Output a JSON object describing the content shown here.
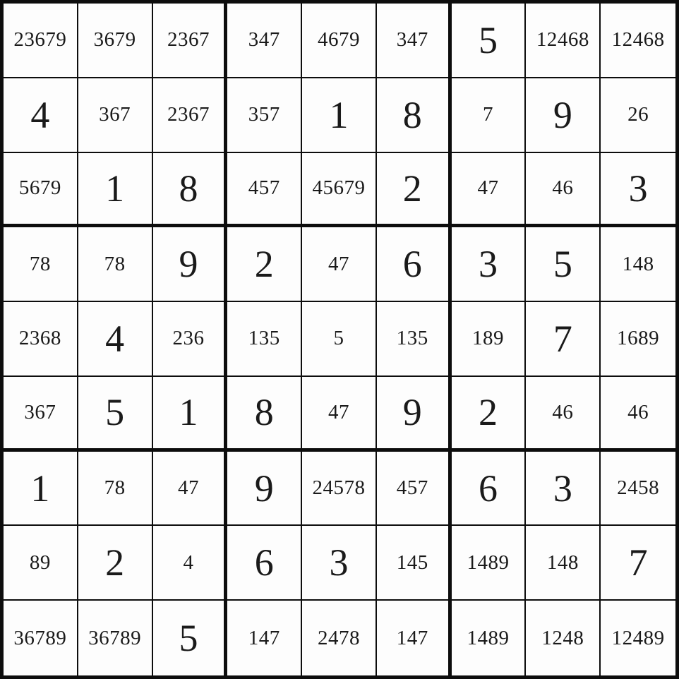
{
  "app": {
    "description": "Sudoku board with solved digits and pencil-mark candidates"
  },
  "colors": {
    "grid_line": "#0d0d0d",
    "digit_text": "#1a1a1a",
    "cell_background": "#fdfdfd"
  },
  "grid": {
    "rows": 9,
    "cols": 9,
    "cells": [
      {
        "row": 1,
        "col": 1,
        "kind": "pencil",
        "value": "23679"
      },
      {
        "row": 1,
        "col": 2,
        "kind": "pencil",
        "value": "3679"
      },
      {
        "row": 1,
        "col": 3,
        "kind": "pencil",
        "value": "2367"
      },
      {
        "row": 1,
        "col": 4,
        "kind": "pencil",
        "value": "347"
      },
      {
        "row": 1,
        "col": 5,
        "kind": "pencil",
        "value": "4679"
      },
      {
        "row": 1,
        "col": 6,
        "kind": "pencil",
        "value": "347"
      },
      {
        "row": 1,
        "col": 7,
        "kind": "solved",
        "value": "5"
      },
      {
        "row": 1,
        "col": 8,
        "kind": "pencil",
        "value": "12468"
      },
      {
        "row": 1,
        "col": 9,
        "kind": "pencil",
        "value": "12468"
      },
      {
        "row": 2,
        "col": 1,
        "kind": "solved",
        "value": "4"
      },
      {
        "row": 2,
        "col": 2,
        "kind": "pencil",
        "value": "367"
      },
      {
        "row": 2,
        "col": 3,
        "kind": "pencil",
        "value": "2367"
      },
      {
        "row": 2,
        "col": 4,
        "kind": "pencil",
        "value": "357"
      },
      {
        "row": 2,
        "col": 5,
        "kind": "solved",
        "value": "1"
      },
      {
        "row": 2,
        "col": 6,
        "kind": "solved",
        "value": "8"
      },
      {
        "row": 2,
        "col": 7,
        "kind": "pencil",
        "value": "7"
      },
      {
        "row": 2,
        "col": 8,
        "kind": "solved",
        "value": "9"
      },
      {
        "row": 2,
        "col": 9,
        "kind": "pencil",
        "value": "26"
      },
      {
        "row": 3,
        "col": 1,
        "kind": "pencil",
        "value": "5679"
      },
      {
        "row": 3,
        "col": 2,
        "kind": "solved",
        "value": "1"
      },
      {
        "row": 3,
        "col": 3,
        "kind": "solved",
        "value": "8"
      },
      {
        "row": 3,
        "col": 4,
        "kind": "pencil",
        "value": "457"
      },
      {
        "row": 3,
        "col": 5,
        "kind": "pencil",
        "value": "45679"
      },
      {
        "row": 3,
        "col": 6,
        "kind": "solved",
        "value": "2"
      },
      {
        "row": 3,
        "col": 7,
        "kind": "pencil",
        "value": "47"
      },
      {
        "row": 3,
        "col": 8,
        "kind": "pencil",
        "value": "46"
      },
      {
        "row": 3,
        "col": 9,
        "kind": "solved",
        "value": "3"
      },
      {
        "row": 4,
        "col": 1,
        "kind": "pencil",
        "value": "78"
      },
      {
        "row": 4,
        "col": 2,
        "kind": "pencil",
        "value": "78"
      },
      {
        "row": 4,
        "col": 3,
        "kind": "solved",
        "value": "9"
      },
      {
        "row": 4,
        "col": 4,
        "kind": "solved",
        "value": "2"
      },
      {
        "row": 4,
        "col": 5,
        "kind": "pencil",
        "value": "47"
      },
      {
        "row": 4,
        "col": 6,
        "kind": "solved",
        "value": "6"
      },
      {
        "row": 4,
        "col": 7,
        "kind": "solved",
        "value": "3"
      },
      {
        "row": 4,
        "col": 8,
        "kind": "solved",
        "value": "5"
      },
      {
        "row": 4,
        "col": 9,
        "kind": "pencil",
        "value": "148"
      },
      {
        "row": 5,
        "col": 1,
        "kind": "pencil",
        "value": "2368"
      },
      {
        "row": 5,
        "col": 2,
        "kind": "solved",
        "value": "4"
      },
      {
        "row": 5,
        "col": 3,
        "kind": "pencil",
        "value": "236"
      },
      {
        "row": 5,
        "col": 4,
        "kind": "pencil",
        "value": "135"
      },
      {
        "row": 5,
        "col": 5,
        "kind": "pencil",
        "value": "5"
      },
      {
        "row": 5,
        "col": 6,
        "kind": "pencil",
        "value": "135"
      },
      {
        "row": 5,
        "col": 7,
        "kind": "pencil",
        "value": "189"
      },
      {
        "row": 5,
        "col": 8,
        "kind": "solved",
        "value": "7"
      },
      {
        "row": 5,
        "col": 9,
        "kind": "pencil",
        "value": "1689"
      },
      {
        "row": 6,
        "col": 1,
        "kind": "pencil",
        "value": "367"
      },
      {
        "row": 6,
        "col": 2,
        "kind": "solved",
        "value": "5"
      },
      {
        "row": 6,
        "col": 3,
        "kind": "solved",
        "value": "1"
      },
      {
        "row": 6,
        "col": 4,
        "kind": "solved",
        "value": "8"
      },
      {
        "row": 6,
        "col": 5,
        "kind": "pencil",
        "value": "47"
      },
      {
        "row": 6,
        "col": 6,
        "kind": "solved",
        "value": "9"
      },
      {
        "row": 6,
        "col": 7,
        "kind": "solved",
        "value": "2"
      },
      {
        "row": 6,
        "col": 8,
        "kind": "pencil",
        "value": "46"
      },
      {
        "row": 6,
        "col": 9,
        "kind": "pencil",
        "value": "46"
      },
      {
        "row": 7,
        "col": 1,
        "kind": "solved",
        "value": "1"
      },
      {
        "row": 7,
        "col": 2,
        "kind": "pencil",
        "value": "78"
      },
      {
        "row": 7,
        "col": 3,
        "kind": "pencil",
        "value": "47"
      },
      {
        "row": 7,
        "col": 4,
        "kind": "solved",
        "value": "9"
      },
      {
        "row": 7,
        "col": 5,
        "kind": "pencil",
        "value": "24578"
      },
      {
        "row": 7,
        "col": 6,
        "kind": "pencil",
        "value": "457"
      },
      {
        "row": 7,
        "col": 7,
        "kind": "solved",
        "value": "6"
      },
      {
        "row": 7,
        "col": 8,
        "kind": "solved",
        "value": "3"
      },
      {
        "row": 7,
        "col": 9,
        "kind": "pencil",
        "value": "2458"
      },
      {
        "row": 8,
        "col": 1,
        "kind": "pencil",
        "value": "89"
      },
      {
        "row": 8,
        "col": 2,
        "kind": "solved",
        "value": "2"
      },
      {
        "row": 8,
        "col": 3,
        "kind": "pencil",
        "value": "4"
      },
      {
        "row": 8,
        "col": 4,
        "kind": "solved",
        "value": "6"
      },
      {
        "row": 8,
        "col": 5,
        "kind": "solved",
        "value": "3"
      },
      {
        "row": 8,
        "col": 6,
        "kind": "pencil",
        "value": "145"
      },
      {
        "row": 8,
        "col": 7,
        "kind": "pencil",
        "value": "1489"
      },
      {
        "row": 8,
        "col": 8,
        "kind": "pencil",
        "value": "148"
      },
      {
        "row": 8,
        "col": 9,
        "kind": "solved",
        "value": "7"
      },
      {
        "row": 9,
        "col": 1,
        "kind": "pencil",
        "value": "36789"
      },
      {
        "row": 9,
        "col": 2,
        "kind": "pencil",
        "value": "36789"
      },
      {
        "row": 9,
        "col": 3,
        "kind": "solved",
        "value": "5"
      },
      {
        "row": 9,
        "col": 4,
        "kind": "pencil",
        "value": "147"
      },
      {
        "row": 9,
        "col": 5,
        "kind": "pencil",
        "value": "2478"
      },
      {
        "row": 9,
        "col": 6,
        "kind": "pencil",
        "value": "147"
      },
      {
        "row": 9,
        "col": 7,
        "kind": "pencil",
        "value": "1489"
      },
      {
        "row": 9,
        "col": 8,
        "kind": "pencil",
        "value": "1248"
      },
      {
        "row": 9,
        "col": 9,
        "kind": "pencil",
        "value": "12489"
      }
    ]
  }
}
